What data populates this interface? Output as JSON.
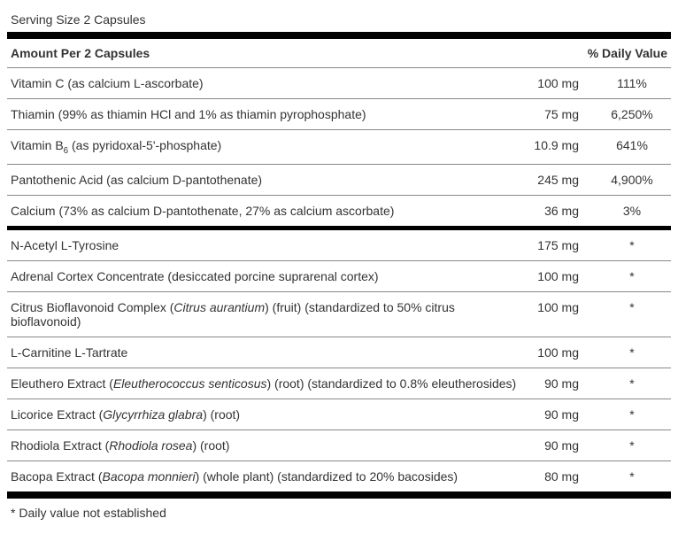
{
  "serving": "Serving Size 2 Capsules",
  "header": {
    "left": "Amount Per 2 Capsules",
    "right": "% Daily Value"
  },
  "group1": [
    {
      "name": "Vitamin C (as calcium L-ascorbate)",
      "amt": "100 mg",
      "dv": "111%"
    },
    {
      "name": "Thiamin (99% as thiamin HCl and 1% as thiamin pyrophosphate)",
      "amt": "75 mg",
      "dv": "6,250%"
    },
    {
      "name": "Vitamin B<sub>6</sub> (as pyridoxal-5'-phosphate)",
      "amt": "10.9 mg",
      "dv": "641%"
    },
    {
      "name": "Pantothenic Acid (as calcium D-pantothenate)",
      "amt": "245 mg",
      "dv": "4,900%"
    },
    {
      "name": "Calcium (73% as calcium D-pantothenate, 27% as calcium ascorbate)",
      "amt": "36 mg",
      "dv": "3%"
    }
  ],
  "group2": [
    {
      "name": "N-Acetyl L-Tyrosine",
      "amt": "175 mg",
      "dv": "*"
    },
    {
      "name": "Adrenal Cortex Concentrate (desiccated porcine suprarenal cortex)",
      "amt": "100 mg",
      "dv": "*"
    },
    {
      "name": "Citrus Bioflavonoid Complex (<em>Citrus aurantium</em>) (fruit) (standardized to 50% citrus bioflavonoid)",
      "amt": "100 mg",
      "dv": "*"
    },
    {
      "name": "L-Carnitine L-Tartrate",
      "amt": "100 mg",
      "dv": "*"
    },
    {
      "name": "Eleuthero Extract (<em>Eleutherococcus senticosus</em>) (root) (standardized to 0.8% eleutherosides)",
      "amt": "90 mg",
      "dv": "*"
    },
    {
      "name": "Licorice Extract (<em>Glycyrrhiza glabra</em>) (root)",
      "amt": "90 mg",
      "dv": "*"
    },
    {
      "name": "Rhodiola Extract (<em>Rhodiola rosea</em>) (root)",
      "amt": "90 mg",
      "dv": "*"
    },
    {
      "name": "Bacopa Extract (<em>Bacopa monnieri</em>) (whole plant) (standardized to 20% bacosides)",
      "amt": "80 mg",
      "dv": "*"
    }
  ],
  "footnote": "* Daily value not established"
}
